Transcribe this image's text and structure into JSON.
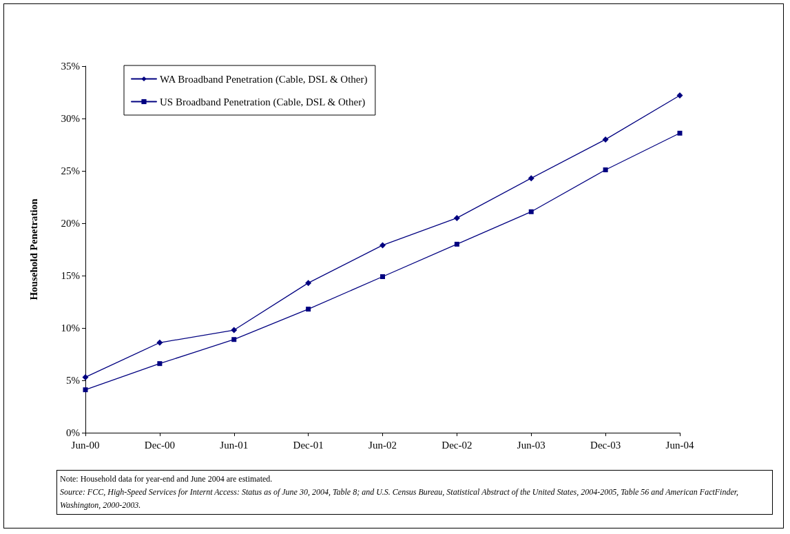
{
  "chart_data": {
    "type": "line",
    "ylabel": "Household Penetration",
    "categories": [
      "Jun-00",
      "Dec-00",
      "Jun-01",
      "Dec-01",
      "Jun-02",
      "Dec-02",
      "Jun-03",
      "Dec-03",
      "Jun-04"
    ],
    "series": [
      {
        "name": "WA Broadband Penetration (Cable, DSL & Other)",
        "color": "#000080",
        "marker": "diamond",
        "values": [
          5.3,
          8.6,
          9.8,
          14.3,
          17.9,
          20.5,
          24.3,
          28.0,
          32.2
        ]
      },
      {
        "name": "US Broadband Penetration (Cable, DSL & Other)",
        "color": "#000080",
        "marker": "square",
        "values": [
          4.1,
          6.6,
          8.9,
          11.8,
          14.9,
          18.0,
          21.1,
          25.1,
          28.6
        ]
      }
    ],
    "ylim": [
      0,
      35
    ],
    "yticks": [
      {
        "value": 0,
        "label": "0%"
      },
      {
        "value": 5,
        "label": "5%"
      },
      {
        "value": 10,
        "label": "10%"
      },
      {
        "value": 15,
        "label": "15%"
      },
      {
        "value": 20,
        "label": "20%"
      },
      {
        "value": 25,
        "label": "25%"
      },
      {
        "value": 30,
        "label": "30%"
      },
      {
        "value": 35,
        "label": "35%"
      }
    ],
    "grid": false,
    "legend": "top left",
    "line_style": "solid",
    "annotations": [
      "Note: Household data for year-end and June 2004 are estimated.",
      "Source: FCC, High-Speed Services for Internt Access: Status as of June 30, 2004, Table 8; and U.S. Census Bureau, Statistical Abstract of the United States, 2004-2005, Table 56 and American FactFinder, Washington, 2000-2003."
    ]
  }
}
